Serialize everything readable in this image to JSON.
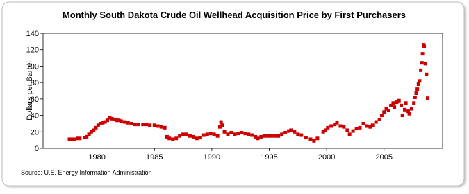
{
  "chart_data": {
    "type": "scatter",
    "title": "Monthly South Dakota Crude Oil Wellhead Acquisition Price by First Purchasers",
    "y_label": "Dollars per Barrel",
    "source": "Source: U.S. Energy Information Administration",
    "color": "#cc0000",
    "xlim": [
      1975.3,
      2010.1
    ],
    "xticks": [
      1980,
      1985,
      1990,
      1995,
      2000,
      2005
    ],
    "ylim": [
      0,
      140
    ],
    "yticks": [
      0,
      20,
      40,
      60,
      80,
      100,
      120,
      140
    ],
    "x": [
      1977.6,
      1977.8,
      1978.0,
      1978.3,
      1978.5,
      1978.9,
      1979.1,
      1979.3,
      1979.5,
      1979.7,
      1979.9,
      1980.1,
      1980.3,
      1980.5,
      1980.7,
      1980.9,
      1981.1,
      1981.3,
      1981.5,
      1981.7,
      1981.9,
      1982.1,
      1982.4,
      1982.7,
      1983.0,
      1983.3,
      1983.6,
      1984.0,
      1984.3,
      1984.6,
      1985.0,
      1985.3,
      1985.6,
      1985.9,
      1986.1,
      1986.3,
      1986.6,
      1986.9,
      1987.2,
      1987.5,
      1987.8,
      1988.1,
      1988.4,
      1988.7,
      1989.0,
      1989.3,
      1989.6,
      1989.9,
      1990.2,
      1990.5,
      1990.7,
      1990.8,
      1990.9,
      1991.1,
      1991.4,
      1991.7,
      1992.0,
      1992.3,
      1992.6,
      1992.9,
      1993.2,
      1993.5,
      1993.8,
      1994.0,
      1994.3,
      1994.6,
      1994.9,
      1995.2,
      1995.5,
      1995.8,
      1996.1,
      1996.4,
      1996.7,
      1996.9,
      1997.2,
      1997.5,
      1997.8,
      1998.2,
      1998.6,
      1998.9,
      1999.2,
      1999.7,
      1999.9,
      2000.1,
      2000.4,
      2000.7,
      2000.9,
      2001.2,
      2001.5,
      2001.8,
      2002.0,
      2002.3,
      2002.6,
      2002.9,
      2003.2,
      2003.5,
      2003.8,
      2004.0,
      2004.3,
      2004.6,
      2004.8,
      2005.0,
      2005.2,
      2005.4,
      2005.6,
      2005.8,
      2005.9,
      2006.1,
      2006.3,
      2006.5,
      2006.6,
      2006.8,
      2006.9,
      2007.1,
      2007.2,
      2007.4,
      2007.6,
      2007.7,
      2007.8,
      2007.9,
      2008.0,
      2008.1,
      2008.2,
      2008.3,
      2008.35,
      2008.45,
      2008.5,
      2008.6,
      2008.7,
      2008.8
    ],
    "values": [
      11,
      11,
      11,
      12,
      12,
      13,
      14,
      17,
      20,
      22,
      25,
      28,
      30,
      31,
      32,
      34,
      37,
      36,
      35,
      34,
      34,
      33,
      32,
      31,
      30,
      29,
      29,
      29,
      29,
      28,
      28,
      27,
      26,
      25,
      14,
      12,
      11,
      12,
      15,
      17,
      17,
      15,
      14,
      12,
      13,
      16,
      17,
      18,
      17,
      15,
      26,
      32,
      28,
      20,
      17,
      19,
      17,
      18,
      19,
      18,
      17,
      16,
      14,
      12,
      14,
      15,
      15,
      15,
      15,
      15,
      17,
      19,
      21,
      22,
      20,
      17,
      16,
      13,
      11,
      9,
      12,
      20,
      22,
      25,
      27,
      29,
      31,
      27,
      26,
      22,
      17,
      21,
      24,
      25,
      30,
      27,
      26,
      28,
      32,
      35,
      40,
      44,
      48,
      46,
      52,
      55,
      50,
      56,
      58,
      52,
      40,
      47,
      55,
      45,
      42,
      48,
      55,
      62,
      67,
      72,
      78,
      82,
      95,
      104,
      115,
      126,
      124,
      103,
      90,
      61
    ]
  }
}
